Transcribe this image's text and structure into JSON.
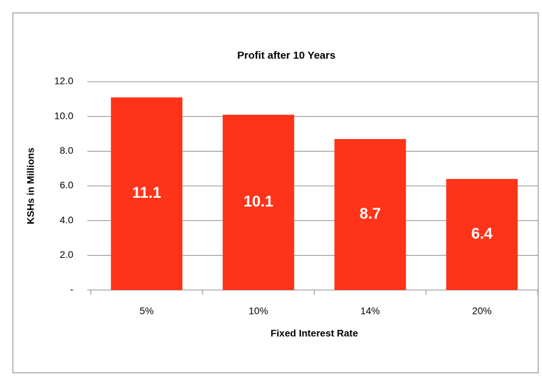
{
  "chart_data": {
    "type": "bar",
    "title": "Profit after 10 Years",
    "xlabel": "Fixed Interest Rate",
    "ylabel": "KSHs in Millions",
    "categories": [
      "5%",
      "10%",
      "14%",
      "20%"
    ],
    "values": [
      11.1,
      10.1,
      8.7,
      6.4
    ],
    "color": "#ff3319",
    "ylim": [
      0,
      12
    ],
    "yticks": [
      {
        "value": 0,
        "label": "-"
      },
      {
        "value": 2,
        "label": "2.0"
      },
      {
        "value": 4,
        "label": "4.0"
      },
      {
        "value": 6,
        "label": "6.0"
      },
      {
        "value": 8,
        "label": "8.0"
      },
      {
        "value": 10,
        "label": "10.0"
      },
      {
        "value": 12,
        "label": "12.0"
      }
    ],
    "grid": true
  }
}
